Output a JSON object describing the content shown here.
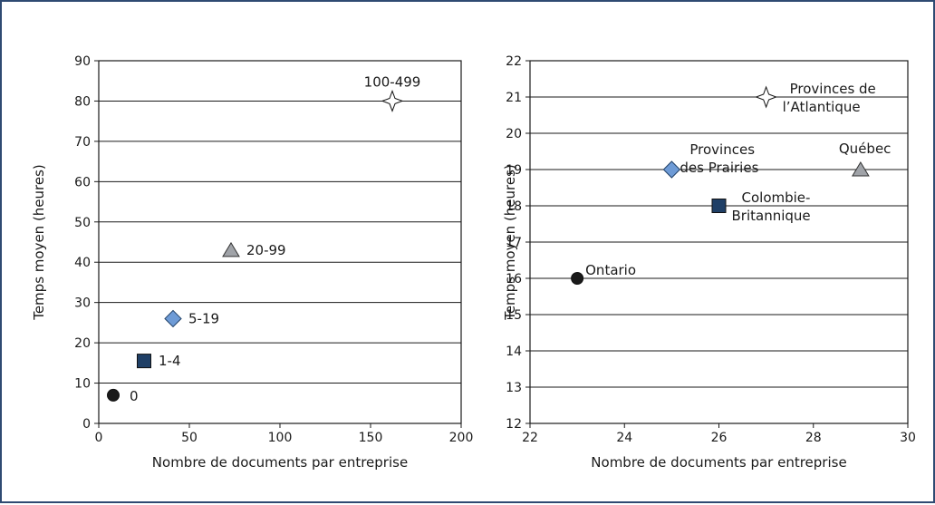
{
  "chart_data": [
    {
      "type": "scatter",
      "xlabel": "Nombre de documents par entreprise",
      "ylabel": "Temps moyen (heures)",
      "xlim": [
        0,
        200
      ],
      "ylim": [
        0,
        90
      ],
      "xticks": [
        "0",
        "50",
        "100",
        "150",
        "200"
      ],
      "yticks": [
        "0",
        "10",
        "20",
        "30",
        "40",
        "50",
        "60",
        "70",
        "80",
        "90"
      ],
      "grid": "horizontal",
      "points": [
        {
          "label": "0",
          "x": 8,
          "y": 7,
          "marker": "circle",
          "color": "#1a1a1a"
        },
        {
          "label": "1-4",
          "x": 25,
          "y": 15.5,
          "marker": "square",
          "color": "#1f3f66"
        },
        {
          "label": "5-19",
          "x": 41,
          "y": 26,
          "marker": "diamond",
          "color": "#6e9bd6"
        },
        {
          "label": "20-99",
          "x": 73,
          "y": 43,
          "marker": "triangle",
          "color": "#a0a3a8"
        },
        {
          "label": "100-499",
          "x": 162,
          "y": 80,
          "marker": "star",
          "color": "#ffffff"
        }
      ]
    },
    {
      "type": "scatter",
      "xlabel": "Nombre de documents par entreprise",
      "ylabel": "Temps moyen (heures)",
      "xlim": [
        22,
        30
      ],
      "ylim": [
        12,
        22
      ],
      "xticks": [
        "22",
        "24",
        "26",
        "28",
        "30"
      ],
      "yticks": [
        "12",
        "13",
        "14",
        "15",
        "16",
        "17",
        "18",
        "19",
        "20",
        "21",
        "22"
      ],
      "grid": "horizontal",
      "points": [
        {
          "label": "Ontario",
          "x": 23,
          "y": 16,
          "marker": "circle",
          "color": "#1a1a1a"
        },
        {
          "label": "Colombie-Britannique",
          "x": 26,
          "y": 18,
          "marker": "square",
          "color": "#1f3f66"
        },
        {
          "label": "Provinces des Prairies",
          "x": 25,
          "y": 19,
          "marker": "diamond",
          "color": "#6e9bd6"
        },
        {
          "label": "Québec",
          "x": 29,
          "y": 19,
          "marker": "triangle",
          "color": "#a0a3a8"
        },
        {
          "label": "Provinces de l’Atlantique",
          "x": 27,
          "y": 21,
          "marker": "star",
          "color": "#ffffff"
        }
      ]
    }
  ]
}
